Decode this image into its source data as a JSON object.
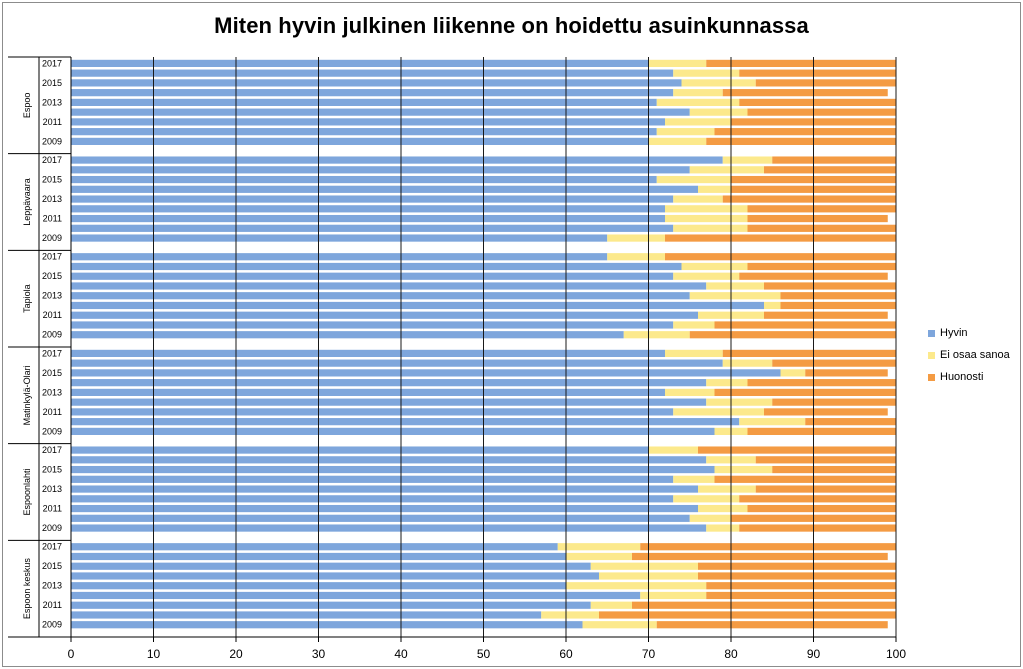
{
  "title": "Miten hyvin julkinen liikenne on hoidettu asuinkunnassa",
  "colors": {
    "Hyvin": "#7ea6dc",
    "Ei osaa sanoa": "#fce98c",
    "Huonosti": "#f49b43",
    "grid": "#1a1a1a"
  },
  "chart_data": {
    "type": "bar",
    "orientation": "horizontal",
    "stacked": true,
    "title": "Miten hyvin julkinen liikenne on hoidettu asuinkunnassa",
    "xlim": [
      0,
      100
    ],
    "xticks": [
      0,
      10,
      20,
      30,
      40,
      50,
      60,
      70,
      80,
      90,
      100
    ],
    "grid": true,
    "legend_position": "right",
    "legend": [
      "Hyvin",
      "Ei osaa sanoa",
      "Huonosti"
    ],
    "groups": [
      {
        "name": "Espoo",
        "years": [
          "2017",
          "",
          "2015",
          "",
          "2013",
          "",
          "2011",
          "",
          "2009"
        ],
        "rows": [
          [
            70,
            7,
            23
          ],
          [
            73,
            8,
            19
          ],
          [
            74,
            9,
            17
          ],
          [
            73,
            6,
            20
          ],
          [
            71,
            10,
            19
          ],
          [
            75,
            7,
            18
          ],
          [
            72,
            8,
            20
          ],
          [
            71,
            7,
            22
          ],
          [
            70,
            7,
            23
          ]
        ]
      },
      {
        "name": "Leppävaara",
        "years": [
          "2017",
          "",
          "2015",
          "",
          "2013",
          "",
          "2011",
          "",
          "2009"
        ],
        "rows": [
          [
            79,
            6,
            15
          ],
          [
            75,
            9,
            16
          ],
          [
            71,
            9,
            20
          ],
          [
            76,
            4,
            20
          ],
          [
            73,
            6,
            21
          ],
          [
            72,
            10,
            18
          ],
          [
            72,
            10,
            17
          ],
          [
            73,
            9,
            18
          ],
          [
            65,
            7,
            28
          ]
        ]
      },
      {
        "name": "Tapiola",
        "years": [
          "2017",
          "",
          "2015",
          "",
          "2013",
          "",
          "2011",
          "",
          "2009"
        ],
        "rows": [
          [
            65,
            7,
            28
          ],
          [
            74,
            8,
            18
          ],
          [
            73,
            8,
            18
          ],
          [
            77,
            7,
            16
          ],
          [
            75,
            11,
            14
          ],
          [
            84,
            2,
            14
          ],
          [
            76,
            8,
            15
          ],
          [
            73,
            5,
            22
          ],
          [
            67,
            8,
            25
          ]
        ]
      },
      {
        "name": "Matinkylä-Olari",
        "years": [
          "2017",
          "",
          "2015",
          "",
          "2013",
          "",
          "2011",
          "",
          "2009"
        ],
        "rows": [
          [
            72,
            7,
            21
          ],
          [
            79,
            6,
            15
          ],
          [
            86,
            3,
            10
          ],
          [
            77,
            5,
            18
          ],
          [
            72,
            6,
            22
          ],
          [
            77,
            8,
            15
          ],
          [
            73,
            11,
            15
          ],
          [
            81,
            8,
            11
          ],
          [
            78,
            4,
            18
          ]
        ]
      },
      {
        "name": "Espoonlahti",
        "years": [
          "2017",
          "",
          "2015",
          "",
          "2013",
          "",
          "2011",
          "",
          "2009"
        ],
        "rows": [
          [
            70,
            6,
            24
          ],
          [
            77,
            6,
            17
          ],
          [
            78,
            7,
            15
          ],
          [
            73,
            5,
            22
          ],
          [
            76,
            7,
            17
          ],
          [
            73,
            8,
            19
          ],
          [
            76,
            6,
            18
          ],
          [
            75,
            5,
            20
          ],
          [
            77,
            4,
            19
          ]
        ]
      },
      {
        "name": "Espoon keskus",
        "years": [
          "2017",
          "",
          "2015",
          "",
          "2013",
          "",
          "2011",
          "",
          "2009"
        ],
        "rows": [
          [
            59,
            10,
            31
          ],
          [
            60,
            8,
            31
          ],
          [
            63,
            13,
            24
          ],
          [
            64,
            12,
            24
          ],
          [
            60,
            17,
            23
          ],
          [
            69,
            8,
            23
          ],
          [
            63,
            5,
            32
          ],
          [
            57,
            7,
            36
          ],
          [
            62,
            9,
            28
          ]
        ]
      }
    ]
  }
}
